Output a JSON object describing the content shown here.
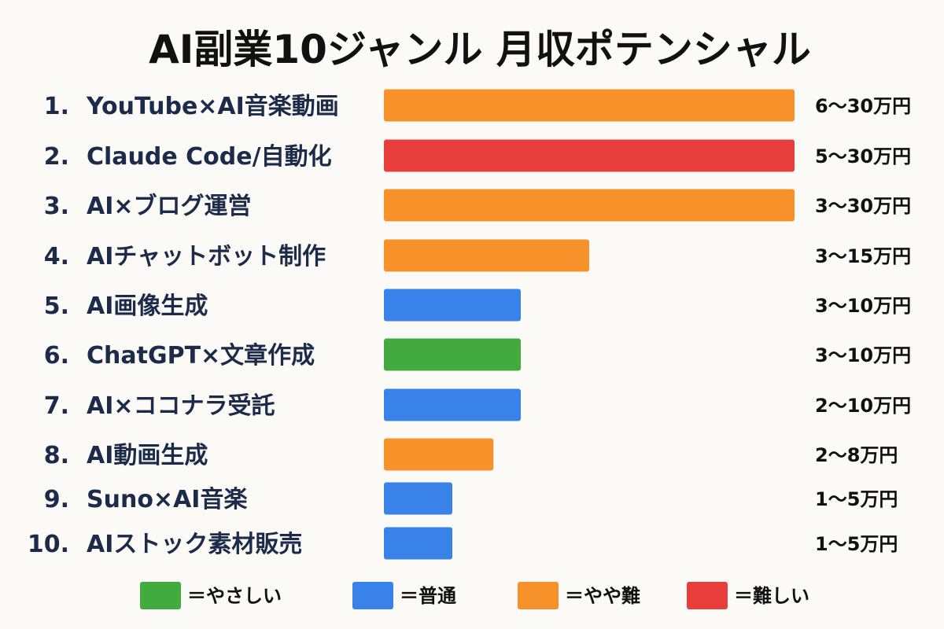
{
  "chart_data": {
    "type": "bar",
    "orientation": "horizontal",
    "title": "AI副業10ジャンル 月収ポテンシャル",
    "categories": [
      "YouTube×AI音楽動画",
      "Claude Code/自動化",
      "AI×ブログ運営",
      "AIチャットボット制作",
      "AI画像生成",
      "ChatGPT×文章作成",
      "AI×ココナラ受託",
      "AI動画生成",
      "Suno×AI音楽",
      "AIストック素材販売"
    ],
    "ranks": [
      "1.",
      "2.",
      "3.",
      "4.",
      "5.",
      "6.",
      "7.",
      "8.",
      "9.",
      "10."
    ],
    "values": [
      30,
      30,
      30,
      15,
      10,
      10,
      10,
      8,
      5,
      5
    ],
    "value_labels": [
      "6～30万円",
      "5～30万円",
      "3～30万円",
      "3～15万円",
      "3～10万円",
      "3～10万円",
      "2～10万円",
      "2～8万円",
      "1～5万円",
      "1～5万円"
    ],
    "difficulty": [
      "orange",
      "red",
      "orange",
      "orange",
      "blue",
      "green",
      "blue",
      "orange",
      "blue",
      "blue"
    ],
    "xlim": [
      0,
      30
    ],
    "grid": false,
    "legend_position": "bottom",
    "legend": [
      {
        "key": "green",
        "label": "＝やさしい",
        "color": "#43aa3f"
      },
      {
        "key": "blue",
        "label": "＝普通",
        "color": "#3882ea"
      },
      {
        "key": "orange",
        "label": "＝やや難",
        "color": "#f7912a"
      },
      {
        "key": "red",
        "label": "＝難しい",
        "color": "#e93f3c"
      }
    ]
  }
}
